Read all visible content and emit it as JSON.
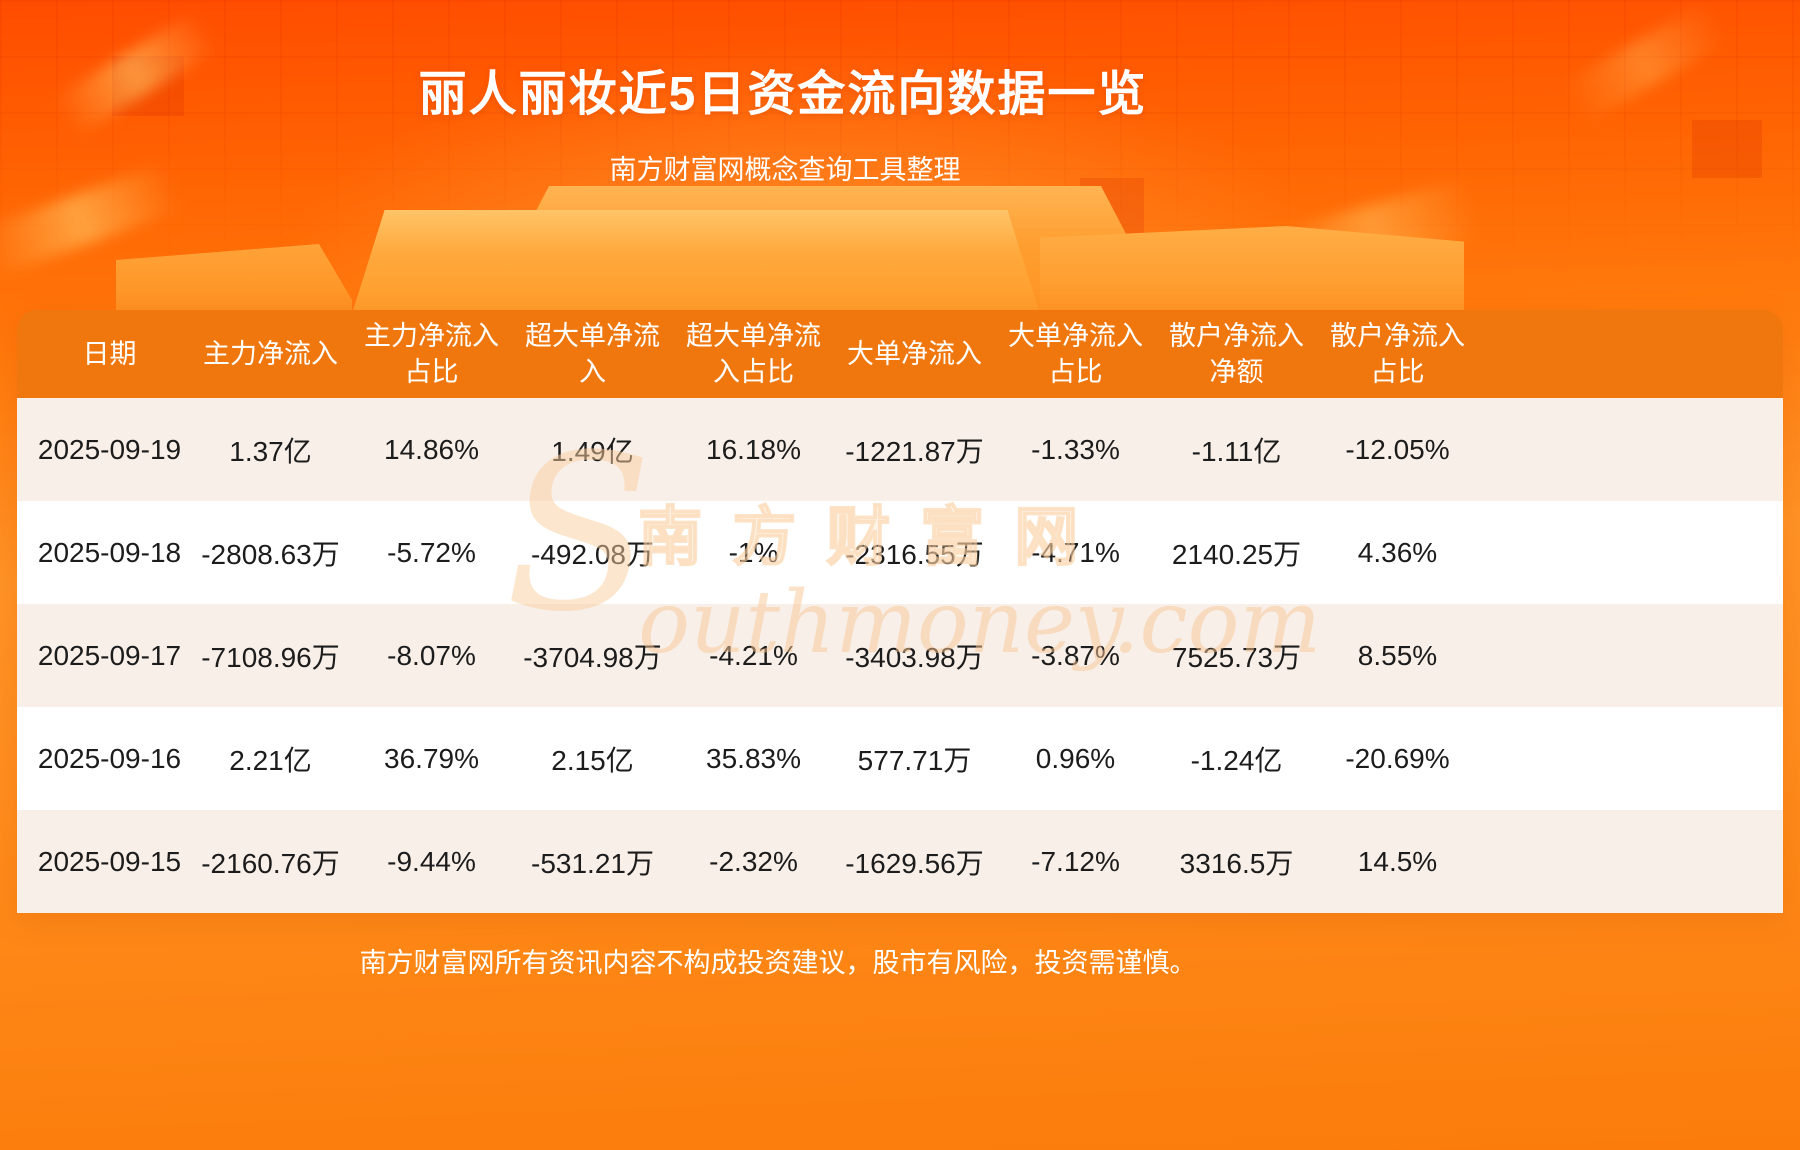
{
  "page": {
    "title": "丽人丽妆近5日资金流向数据一览",
    "subtitle": "南方财富网概念查询工具整理",
    "footer": "南方财富网所有资讯内容不构成投资建议，股市有风险，投资需谨慎。"
  },
  "watermark": {
    "letter": "S",
    "cn": "南方财富网",
    "en": "outhmoney.com"
  },
  "colors": {
    "background_top": "#ff4c00",
    "background_mid": "#ff9326",
    "table_header_bg": "#f0770e",
    "row_alt_bg": "#f8efe8",
    "row_bg": "#ffffff",
    "header_text": "#ffffff",
    "cell_text": "#1c1c1c",
    "title_text": "#ffffff"
  },
  "chart_data": {
    "type": "table",
    "title": "丽人丽妆近5日资金流向数据一览",
    "columns": [
      "日期",
      "主力净流入",
      "主力净流入占比",
      "超大单净流入",
      "超大单净流入占比",
      "大单净流入",
      "大单净流入占比",
      "散户净流入净额",
      "散户净流入占比"
    ],
    "rows": [
      [
        "2025-09-19",
        "1.37亿",
        "14.86%",
        "1.49亿",
        "16.18%",
        "-1221.87万",
        "-1.33%",
        "-1.11亿",
        "-12.05%"
      ],
      [
        "2025-09-18",
        "-2808.63万",
        "-5.72%",
        "-492.08万",
        "-1%",
        "-2316.55万",
        "-4.71%",
        "2140.25万",
        "4.36%"
      ],
      [
        "2025-09-17",
        "-7108.96万",
        "-8.07%",
        "-3704.98万",
        "-4.21%",
        "-3403.98万",
        "-3.87%",
        "7525.73万",
        "8.55%"
      ],
      [
        "2025-09-16",
        "2.21亿",
        "36.79%",
        "2.15亿",
        "35.83%",
        "577.71万",
        "0.96%",
        "-1.24亿",
        "-20.69%"
      ],
      [
        "2025-09-15",
        "-2160.76万",
        "-9.44%",
        "-531.21万",
        "-2.32%",
        "-1629.56万",
        "-7.12%",
        "3316.5万",
        "14.5%"
      ]
    ]
  }
}
